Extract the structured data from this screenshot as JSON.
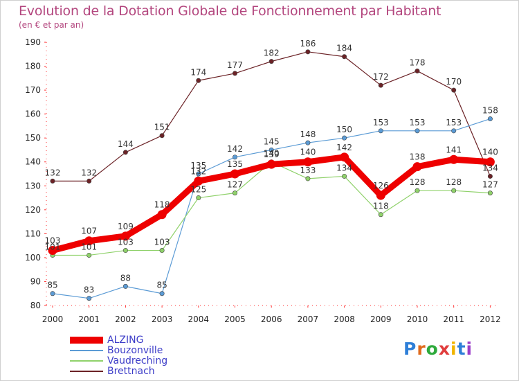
{
  "chart_data": {
    "type": "line",
    "title": "Evolution de la Dotation Globale de Fonctionnement par Habitant",
    "subtitle": "(en € et par an)",
    "xlabel": "",
    "ylabel": "",
    "x": [
      "2000",
      "2001",
      "2002",
      "2003",
      "2004",
      "2005",
      "2006",
      "2007",
      "2008",
      "2009",
      "2010",
      "2011",
      "2012"
    ],
    "ylim": [
      80,
      190
    ],
    "yticks": [
      "80",
      "90",
      "100",
      "110",
      "120",
      "130",
      "140",
      "150",
      "160",
      "170",
      "180",
      "190"
    ],
    "grid": false,
    "legend_position": "bottom-left",
    "series": [
      {
        "name": "ALZING",
        "color": "#ee0000",
        "values": [
          103,
          107,
          109,
          118,
          132,
          135,
          139,
          140,
          142,
          126,
          138,
          141,
          140
        ]
      },
      {
        "name": "Bouzonville",
        "color": "#5b9bd5",
        "values": [
          85,
          83,
          88,
          85,
          135,
          142,
          145,
          148,
          150,
          153,
          153,
          153,
          158
        ]
      },
      {
        "name": "Vaudreching",
        "color": "#8fd16a",
        "values": [
          101,
          101,
          103,
          103,
          125,
          127,
          140,
          133,
          134,
          118,
          128,
          128,
          127
        ]
      },
      {
        "name": "Brettnach",
        "color": "#6b2226",
        "values": [
          132,
          132,
          144,
          151,
          174,
          177,
          182,
          186,
          184,
          172,
          178,
          170,
          134
        ]
      }
    ]
  },
  "logo": {
    "letters": [
      "P",
      "r",
      "o",
      "x",
      "i",
      "t",
      "i"
    ],
    "colors": [
      "#2e7fd8",
      "#e06a1c",
      "#2eaa3c",
      "#e03c3c",
      "#f0b400",
      "#2e7fd8",
      "#9b3cc8"
    ]
  }
}
